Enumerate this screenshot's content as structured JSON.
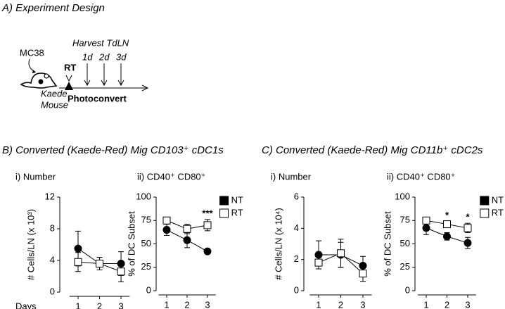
{
  "design": {
    "title": "A) Experiment Design",
    "tumor": "MC38",
    "mouse": [
      "Kaede",
      "Mouse"
    ],
    "treatment": "RT",
    "harvest": "Harvest TdLN",
    "timepoints": [
      "1d",
      "2d",
      "3d"
    ],
    "photoconvert": "Photoconvert"
  },
  "panels": [
    {
      "title": "B) Converted (Kaede-Red) Mig CD103⁺ cDC1s"
    },
    {
      "title": "C) Converted (Kaede-Red) Mig CD11b⁺ cDC2s"
    }
  ],
  "chart_data": [
    {
      "type": "line",
      "title": "i) Number",
      "y_label": "# Cells/LN (x 10³)",
      "x_label": "Days",
      "x": [
        1,
        2,
        3
      ],
      "xlim": [
        0.6,
        3.4
      ],
      "xticks": [
        1,
        2,
        3
      ],
      "ylim": [
        0,
        12
      ],
      "yticks": [
        0,
        4,
        8,
        12
      ],
      "series": [
        {
          "name": "NT",
          "color": "#000000",
          "marker": "circle",
          "marker_fill": "#000000",
          "values": [
            5.5,
            3.6,
            3.6
          ],
          "errors": [
            2.2,
            0.8,
            1.5
          ]
        },
        {
          "name": "RT",
          "color": "#000000",
          "marker": "square",
          "marker_fill": "#ffffff",
          "values": [
            3.8,
            3.6,
            2.6
          ],
          "errors": [
            1.2,
            0.8,
            1.3
          ]
        }
      ]
    },
    {
      "type": "line",
      "title": "ii) CD40⁺ CD80⁺",
      "y_label": "% of DC Subset",
      "x": [
        1,
        2,
        3
      ],
      "xlim": [
        0.6,
        3.4
      ],
      "xticks": [
        1,
        2,
        3
      ],
      "ylim": [
        0,
        100
      ],
      "yticks": [
        0,
        25,
        50,
        75,
        100
      ],
      "legend": "upper right",
      "series": [
        {
          "name": "NT",
          "color": "#000000",
          "marker": "circle",
          "marker_fill": "#000000",
          "values": [
            65,
            54,
            42
          ],
          "errors": [
            6,
            8,
            0
          ]
        },
        {
          "name": "RT",
          "color": "#000000",
          "marker": "square",
          "marker_fill": "#ffffff",
          "values": [
            75,
            66,
            70
          ],
          "errors": [
            3,
            5,
            6
          ]
        }
      ],
      "annotations": [
        {
          "text": "***",
          "x": 3
        }
      ]
    },
    {
      "type": "line",
      "title": "i) Number",
      "y_label": "# Cells/LN (x 10⁴)",
      "x": [
        1,
        2,
        3
      ],
      "xlim": [
        0.6,
        3.4
      ],
      "xticks": [
        1,
        2,
        3
      ],
      "ylim": [
        0,
        6
      ],
      "yticks": [
        0,
        2,
        4,
        6
      ],
      "series": [
        {
          "name": "NT",
          "color": "#000000",
          "marker": "circle",
          "marker_fill": "#000000",
          "values": [
            2.3,
            2.3,
            1.6
          ],
          "errors": [
            0.9,
            0.8,
            0.6
          ]
        },
        {
          "name": "RT",
          "color": "#000000",
          "marker": "square",
          "marker_fill": "#ffffff",
          "values": [
            1.8,
            2.4,
            1.1
          ],
          "errors": [
            0.4,
            0.9,
            0.5
          ]
        }
      ]
    },
    {
      "type": "line",
      "title": "ii) CD40⁺ CD80⁺",
      "y_label": "% of DC Subset",
      "x": [
        1,
        2,
        3
      ],
      "xlim": [
        0.6,
        3.4
      ],
      "xticks": [
        1,
        2,
        3
      ],
      "ylim": [
        0,
        100
      ],
      "yticks": [
        0,
        25,
        50,
        75,
        100
      ],
      "legend": "upper right",
      "series": [
        {
          "name": "NT",
          "color": "#000000",
          "marker": "circle",
          "marker_fill": "#000000",
          "values": [
            67,
            58,
            51
          ],
          "errors": [
            7,
            4,
            6
          ]
        },
        {
          "name": "RT",
          "color": "#000000",
          "marker": "square",
          "marker_fill": "#ffffff",
          "values": [
            75,
            71,
            67
          ],
          "errors": [
            2,
            3,
            5
          ]
        }
      ],
      "annotations": [
        {
          "text": "*",
          "x": 2
        },
        {
          "text": "*",
          "x": 3
        }
      ]
    }
  ]
}
